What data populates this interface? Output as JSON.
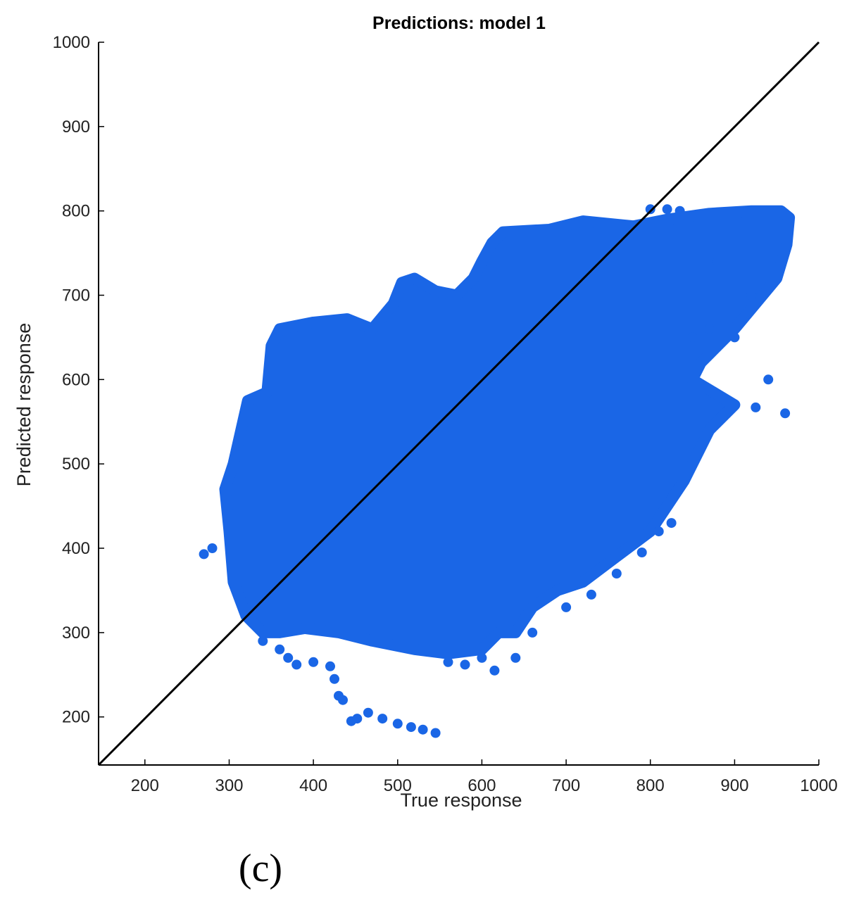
{
  "chart_data": {
    "type": "scatter",
    "title": "Predictions: model 1",
    "xlabel": "True response",
    "ylabel": "Predicted response",
    "panel_label": "(c)",
    "xlim": [
      145,
      1000
    ],
    "ylim": [
      143,
      1000
    ],
    "x_ticks": [
      200,
      300,
      400,
      500,
      600,
      700,
      800,
      900,
      1000
    ],
    "y_ticks": [
      200,
      300,
      400,
      500,
      600,
      700,
      800,
      900,
      1000
    ],
    "grid": false,
    "legend": "none",
    "marker_color": "#1a66e6",
    "reference_line": {
      "from": [
        145,
        143
      ],
      "to": [
        1000,
        1000
      ],
      "color": "#000000"
    },
    "cloud": {
      "upper_boundary": [
        [
          295,
          470
        ],
        [
          305,
          500
        ],
        [
          322,
          575
        ],
        [
          345,
          585
        ],
        [
          350,
          640
        ],
        [
          360,
          660
        ],
        [
          400,
          668
        ],
        [
          440,
          672
        ],
        [
          470,
          660
        ],
        [
          495,
          690
        ],
        [
          505,
          715
        ],
        [
          520,
          720
        ],
        [
          545,
          705
        ],
        [
          570,
          700
        ],
        [
          590,
          720
        ],
        [
          600,
          740
        ],
        [
          612,
          762
        ],
        [
          625,
          775
        ],
        [
          680,
          778
        ],
        [
          720,
          788
        ],
        [
          780,
          782
        ],
        [
          820,
          790
        ],
        [
          870,
          797
        ],
        [
          920,
          800
        ],
        [
          955,
          800
        ],
        [
          965,
          792
        ],
        [
          962,
          760
        ],
        [
          950,
          720
        ],
        [
          925,
          690
        ],
        [
          900,
          660
        ],
        [
          880,
          640
        ],
        [
          860,
          620
        ],
        [
          850,
          600
        ]
      ],
      "lower_boundary": [
        [
          295,
          470
        ],
        [
          300,
          420
        ],
        [
          305,
          360
        ],
        [
          320,
          320
        ],
        [
          340,
          300
        ],
        [
          360,
          300
        ],
        [
          390,
          305
        ],
        [
          430,
          300
        ],
        [
          470,
          290
        ],
        [
          520,
          280
        ],
        [
          560,
          275
        ],
        [
          600,
          280
        ],
        [
          620,
          300
        ],
        [
          640,
          300
        ],
        [
          660,
          330
        ],
        [
          690,
          350
        ],
        [
          720,
          360
        ],
        [
          760,
          390
        ],
        [
          800,
          420
        ],
        [
          840,
          480
        ],
        [
          870,
          540
        ],
        [
          900,
          570
        ],
        [
          850,
          600
        ]
      ],
      "outliers": [
        [
          270,
          393
        ],
        [
          280,
          400
        ],
        [
          340,
          290
        ],
        [
          360,
          280
        ],
        [
          370,
          270
        ],
        [
          380,
          262
        ],
        [
          400,
          265
        ],
        [
          420,
          260
        ],
        [
          425,
          245
        ],
        [
          430,
          225
        ],
        [
          435,
          220
        ],
        [
          445,
          195
        ],
        [
          452,
          198
        ],
        [
          465,
          205
        ],
        [
          482,
          198
        ],
        [
          500,
          192
        ],
        [
          516,
          188
        ],
        [
          530,
          185
        ],
        [
          545,
          181
        ],
        [
          560,
          265
        ],
        [
          580,
          262
        ],
        [
          600,
          270
        ],
        [
          615,
          255
        ],
        [
          640,
          270
        ],
        [
          660,
          300
        ],
        [
          700,
          330
        ],
        [
          730,
          345
        ],
        [
          760,
          370
        ],
        [
          790,
          395
        ],
        [
          810,
          420
        ],
        [
          825,
          430
        ],
        [
          800,
          802
        ],
        [
          820,
          802
        ],
        [
          835,
          800
        ],
        [
          880,
          740
        ],
        [
          920,
          700
        ],
        [
          900,
          650
        ],
        [
          940,
          600
        ],
        [
          960,
          560
        ],
        [
          925,
          567
        ],
        [
          850,
          650
        ],
        [
          870,
          660
        ]
      ]
    }
  }
}
